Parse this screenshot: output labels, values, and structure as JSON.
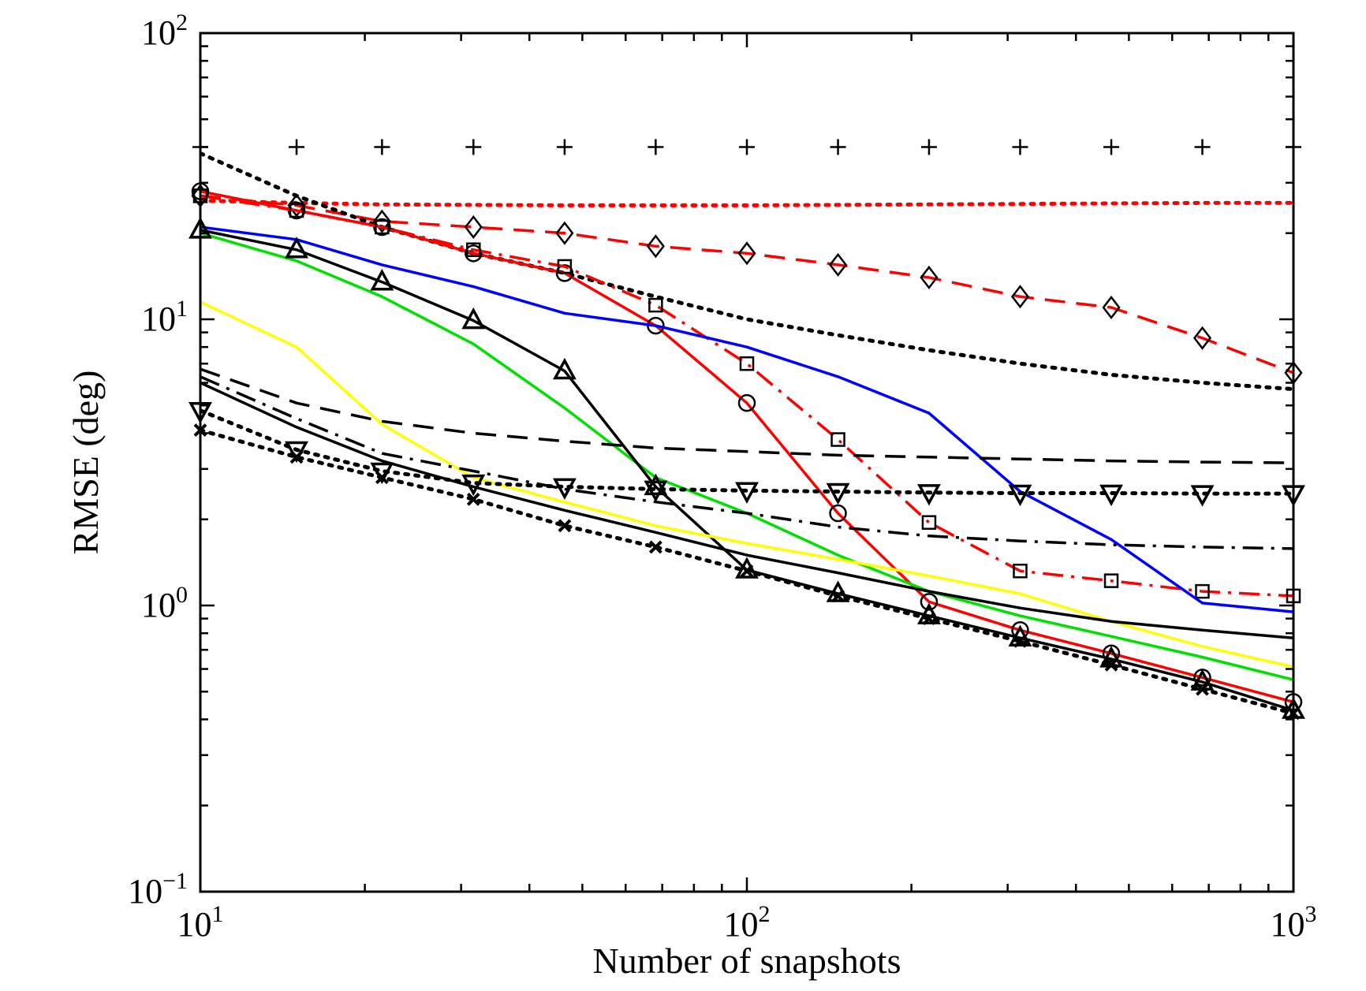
{
  "chart_data": {
    "type": "line",
    "title": "",
    "xlabel": "Number of snapshots",
    "ylabel": "RMSE (deg)",
    "xscale": "log",
    "yscale": "log",
    "xlim": [
      10,
      1000
    ],
    "ylim": [
      0.1,
      100
    ],
    "grid": false,
    "legend": "none",
    "x_ticks": [
      {
        "value": 10,
        "base": "10",
        "exp": "1"
      },
      {
        "value": 100,
        "base": "10",
        "exp": "2"
      },
      {
        "value": 1000,
        "base": "10",
        "exp": "3"
      }
    ],
    "y_ticks": [
      {
        "value": 0.1,
        "base": "10",
        "exp": "−1"
      },
      {
        "value": 1,
        "base": "10",
        "exp": "0"
      },
      {
        "value": 10,
        "base": "10",
        "exp": "1"
      },
      {
        "value": 100,
        "base": "10",
        "exp": "2"
      }
    ],
    "series": [
      {
        "color": "#000000",
        "dash": "none",
        "marker": "plus",
        "lineVisible": false,
        "x": [
          10,
          15,
          21.5,
          31.6,
          46.4,
          68.1,
          100,
          146.8,
          215.4,
          316.2,
          464.2,
          681.3,
          1000
        ],
        "y": [
          40,
          40,
          40,
          40,
          40,
          40,
          40,
          40,
          40,
          40,
          40,
          40,
          40
        ]
      },
      {
        "color": "#ff0000",
        "dash": "dotted",
        "marker": "none",
        "x": [
          10,
          15,
          21.5,
          31.6,
          46.4,
          68.1,
          100,
          146.8,
          215.4,
          316.2,
          464.2,
          681.3,
          1000
        ],
        "y": [
          26,
          25.5,
          25.2,
          25.1,
          25,
          25,
          25,
          25.1,
          25.2,
          25.3,
          25.4,
          25.5,
          25.5
        ]
      },
      {
        "color": "#ff0000",
        "dash": "dashed",
        "marker": "diamond",
        "x": [
          10,
          15,
          21.5,
          31.6,
          46.4,
          68.1,
          100,
          146.8,
          215.4,
          316.2,
          464.2,
          681.3,
          1000
        ],
        "y": [
          27,
          25,
          22,
          21,
          20,
          18,
          17,
          15.5,
          14,
          12,
          11,
          8.6,
          6.5
        ]
      },
      {
        "color": "#000000",
        "dash": "dotted",
        "marker": "none",
        "x": [
          10,
          15,
          21.5,
          31.6,
          46.4,
          68.1,
          100,
          146.8,
          215.4,
          316.2,
          464.2,
          681.3,
          1000
        ],
        "y": [
          38,
          27,
          21,
          17,
          14.5,
          12,
          10,
          8.8,
          7.8,
          7,
          6.4,
          6,
          5.7
        ]
      },
      {
        "color": "#ff0000",
        "dash": "solid",
        "marker": "circle",
        "x": [
          10,
          15,
          21.5,
          31.6,
          46.4,
          68.1,
          100,
          146.8,
          215.4,
          316.2,
          464.2,
          681.3,
          1000
        ],
        "y": [
          28,
          24,
          21,
          17,
          14.5,
          9.5,
          5.1,
          2.1,
          1.03,
          0.82,
          0.68,
          0.56,
          0.46
        ]
      },
      {
        "color": "#ff0000",
        "dash": "dashdot",
        "marker": "square",
        "x": [
          10,
          15,
          21.5,
          31.6,
          46.4,
          68.1,
          100,
          146.8,
          215.4,
          316.2,
          464.2,
          681.3,
          1000
        ],
        "y": [
          27,
          24,
          21,
          17.5,
          15.3,
          11.2,
          7,
          3.8,
          1.95,
          1.32,
          1.22,
          1.12,
          1.08
        ]
      },
      {
        "color": "#0000ff",
        "dash": "solid",
        "marker": "none",
        "x": [
          10,
          15,
          21.5,
          31.6,
          46.4,
          68.1,
          100,
          146.8,
          215.4,
          316.2,
          464.2,
          681.3,
          1000
        ],
        "y": [
          21,
          19,
          15.5,
          13,
          10.5,
          9.5,
          8,
          6.3,
          4.7,
          2.5,
          1.7,
          1.02,
          0.95
        ]
      },
      {
        "color": "#00e000",
        "dash": "solid",
        "marker": "none",
        "x": [
          10,
          15,
          21.5,
          31.6,
          46.4,
          68.1,
          100,
          146.8,
          215.4,
          316.2,
          464.2,
          681.3,
          1000
        ],
        "y": [
          20,
          16,
          12,
          8.2,
          4.9,
          2.8,
          2.1,
          1.5,
          1.12,
          0.92,
          0.78,
          0.66,
          0.55
        ]
      },
      {
        "color": "#000000",
        "dash": "solid",
        "marker": "triangle-up",
        "x": [
          10,
          15,
          21.5,
          31.6,
          46.4,
          68.1,
          100,
          146.8,
          215.4,
          316.2,
          464.2,
          681.3,
          1000
        ],
        "y": [
          20.5,
          17.5,
          13.5,
          9.9,
          6.6,
          2.6,
          1.33,
          1.1,
          0.92,
          0.77,
          0.65,
          0.54,
          0.43
        ]
      },
      {
        "color": "#ffff00",
        "dash": "solid",
        "marker": "none",
        "x": [
          10,
          15,
          21.5,
          31.6,
          46.4,
          68.1,
          100,
          146.8,
          215.4,
          316.2,
          464.2,
          681.3,
          1000
        ],
        "y": [
          11.5,
          8,
          4.3,
          2.8,
          2.3,
          1.9,
          1.65,
          1.45,
          1.27,
          1.1,
          0.88,
          0.72,
          0.61
        ]
      },
      {
        "color": "#000000",
        "dash": "dashed",
        "marker": "none",
        "x": [
          10,
          15,
          21.5,
          31.6,
          46.4,
          68.1,
          100,
          146.8,
          215.4,
          316.2,
          464.2,
          681.3,
          1000
        ],
        "y": [
          6.7,
          5.1,
          4.4,
          4,
          3.75,
          3.55,
          3.45,
          3.35,
          3.3,
          3.25,
          3.2,
          3.17,
          3.15
        ]
      },
      {
        "color": "#000000",
        "dash": "dashdot",
        "marker": "none",
        "x": [
          10,
          15,
          21.5,
          31.6,
          46.4,
          68.1,
          100,
          146.8,
          215.4,
          316.2,
          464.2,
          681.3,
          1000
        ],
        "y": [
          6.3,
          4.5,
          3.4,
          2.95,
          2.55,
          2.3,
          2.1,
          1.88,
          1.75,
          1.68,
          1.63,
          1.6,
          1.58
        ]
      },
      {
        "color": "#000000",
        "dash": "solid",
        "marker": "none",
        "x": [
          10,
          15,
          21.5,
          31.6,
          46.4,
          68.1,
          100,
          146.8,
          215.4,
          316.2,
          464.2,
          681.3,
          1000
        ],
        "y": [
          6,
          4.2,
          3.2,
          2.6,
          2.15,
          1.8,
          1.5,
          1.3,
          1.12,
          0.98,
          0.88,
          0.82,
          0.77
        ]
      },
      {
        "color": "#000000",
        "dash": "dotted",
        "marker": "triangle-down",
        "x": [
          10,
          15,
          21.5,
          31.6,
          46.4,
          68.1,
          100,
          146.8,
          215.4,
          316.2,
          464.2,
          681.3,
          1000
        ],
        "y": [
          4.8,
          3.5,
          2.95,
          2.68,
          2.6,
          2.55,
          2.52,
          2.5,
          2.48,
          2.47,
          2.47,
          2.46,
          2.46
        ]
      },
      {
        "color": "#000000",
        "dash": "dotted",
        "marker": "cross",
        "x": [
          10,
          15,
          21.5,
          31.6,
          46.4,
          68.1,
          100,
          146.8,
          215.4,
          316.2,
          464.2,
          681.3,
          1000
        ],
        "y": [
          4.1,
          3.3,
          2.8,
          2.35,
          1.9,
          1.6,
          1.32,
          1.08,
          0.9,
          0.75,
          0.62,
          0.51,
          0.42
        ]
      }
    ]
  }
}
